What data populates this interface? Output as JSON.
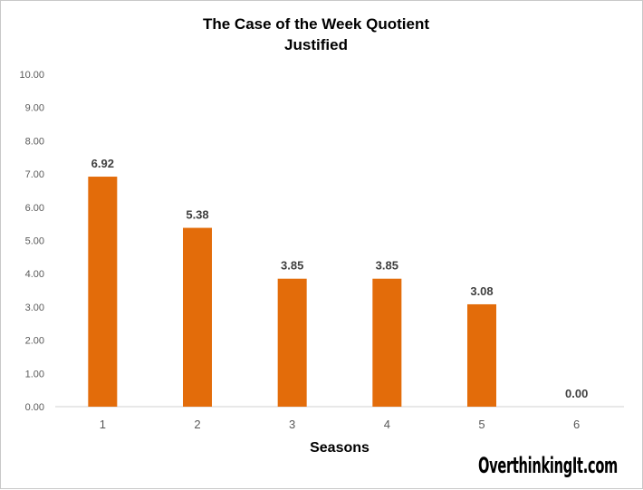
{
  "chart_data": {
    "type": "bar",
    "title": "The Case of the Week Quotient",
    "subtitle": "Justified",
    "xlabel": "Seasons",
    "ylabel": "",
    "categories": [
      "1",
      "2",
      "3",
      "4",
      "5",
      "6"
    ],
    "values": [
      6.92,
      5.38,
      3.85,
      3.85,
      3.08,
      0.0
    ],
    "data_labels": [
      "6.92",
      "5.38",
      "3.85",
      "3.85",
      "3.08",
      "0.00"
    ],
    "ylim": [
      0,
      10
    ],
    "yticks": [
      "0.00",
      "1.00",
      "2.00",
      "3.00",
      "4.00",
      "5.00",
      "6.00",
      "7.00",
      "8.00",
      "9.00",
      "10.00"
    ],
    "grid": false,
    "legend": "none",
    "bar_color": "#E36C0A"
  },
  "watermark": "OverthinkingIt.com"
}
